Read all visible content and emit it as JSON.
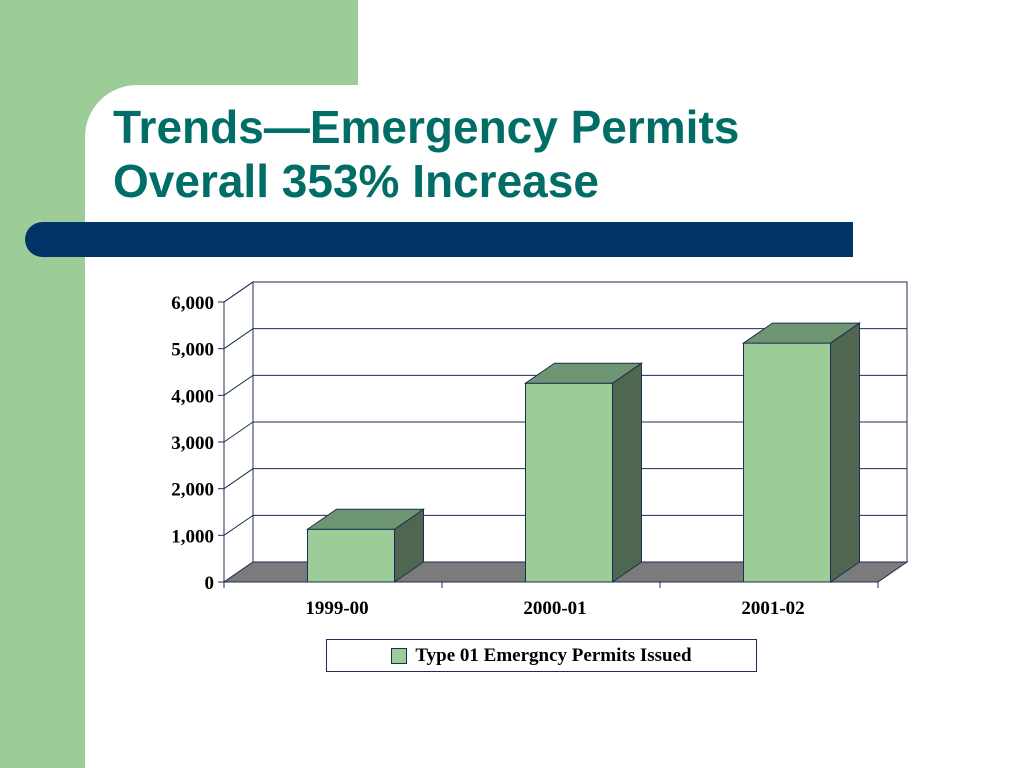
{
  "slide": {
    "title_line1": "Trends—Emergency Permits",
    "title_line2": "Overall 353% Increase",
    "colors": {
      "side_band": "#9ccc97",
      "title_text": "#006e66",
      "title_bar": "#003366",
      "bar_front": "#9ccc97",
      "bar_side": "#4f6650",
      "bar_top": "#6f9672",
      "floor": "#7b7b7b",
      "outline": "#1f2d54"
    }
  },
  "chart_data": {
    "type": "bar",
    "categories": [
      "1999-00",
      "2000-01",
      "2001-02"
    ],
    "series": [
      {
        "name": "Type 01 Emergncy Permits Issued",
        "values": [
          1130,
          4260,
          5120
        ]
      }
    ],
    "ylim": [
      0,
      6000
    ],
    "yticks": [
      "0",
      "1,000",
      "2,000",
      "3,000",
      "4,000",
      "5,000",
      "6,000"
    ],
    "title": "",
    "xlabel": "",
    "ylabel": "",
    "grid": true,
    "legend": "bottom",
    "style": "3d-column"
  }
}
